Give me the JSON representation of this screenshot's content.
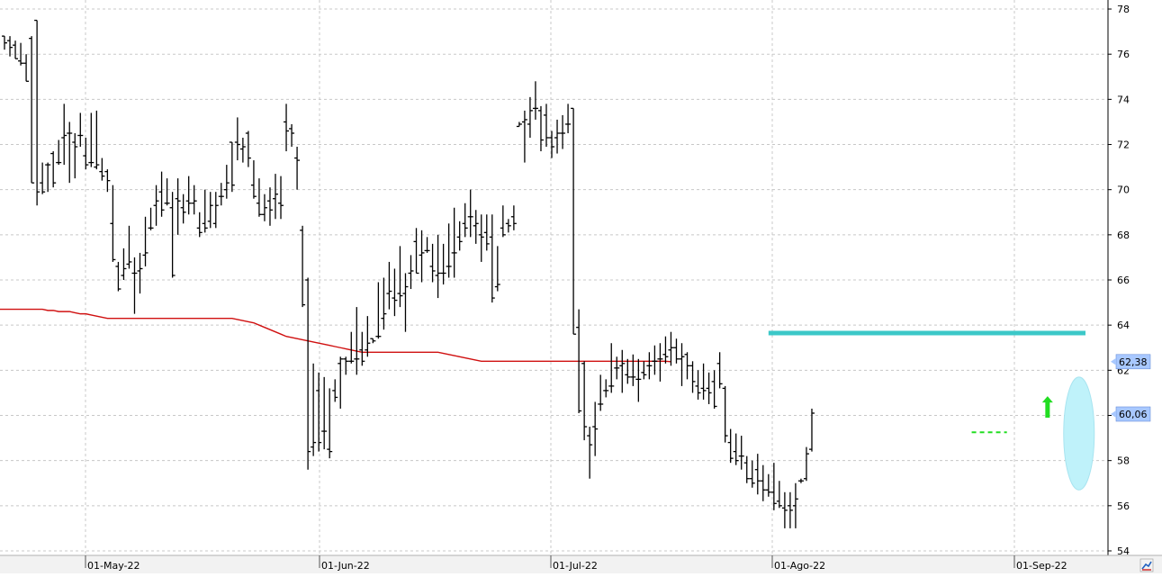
{
  "chart_data": {
    "type": "ohlc",
    "y_axis": {
      "position": "right",
      "min": 53.8,
      "max": 78.4,
      "ticks": [
        54,
        56,
        58,
        60,
        62,
        64,
        66,
        68,
        70,
        72,
        74,
        76,
        78
      ]
    },
    "x_axis": {
      "labels": [
        "01-May-22",
        "01-Jun-22",
        "01-Jul-22",
        "01-Ago-22",
        "01-Sep-22"
      ]
    },
    "grid": true,
    "price_tags": [
      {
        "label": "62,38",
        "value": 62.38,
        "color": "#a8c8ff"
      },
      {
        "label": "60,06",
        "value": 60.06,
        "color": "#a8c8ff"
      }
    ],
    "moving_average": {
      "color": "#d01010",
      "values": [
        64.7,
        64.7,
        64.7,
        64.7,
        64.7,
        64.7,
        64.7,
        64.7,
        64.65,
        64.65,
        64.6,
        64.6,
        64.6,
        64.55,
        64.5,
        64.5,
        64.45,
        64.4,
        64.35,
        64.3,
        64.3,
        64.3,
        64.3,
        64.3,
        64.3,
        64.3,
        64.3,
        64.3,
        64.3,
        64.3,
        64.3,
        64.3,
        64.3,
        64.3,
        64.3,
        64.3,
        64.3,
        64.3,
        64.3,
        64.3,
        64.3,
        64.3,
        64.3,
        64.25,
        64.2,
        64.15,
        64.1,
        64.0,
        63.9,
        63.8,
        63.7,
        63.6,
        63.5,
        63.45,
        63.4,
        63.35,
        63.3,
        63.25,
        63.2,
        63.15,
        63.1,
        63.05,
        63.0,
        62.95,
        62.9,
        62.85,
        62.8,
        62.8,
        62.8,
        62.8,
        62.8,
        62.8,
        62.8,
        62.8,
        62.8,
        62.8,
        62.8,
        62.8,
        62.8,
        62.8,
        62.8,
        62.75,
        62.7,
        62.65,
        62.6,
        62.55,
        62.5,
        62.45,
        62.4,
        62.4,
        62.4,
        62.4,
        62.4,
        62.4,
        62.4,
        62.4,
        62.4,
        62.4,
        62.4,
        62.4,
        62.4,
        62.4,
        62.4,
        62.4,
        62.4,
        62.4,
        62.4,
        62.4,
        62.4,
        62.4,
        62.4,
        62.4,
        62.4,
        62.4,
        62.4,
        62.4,
        62.4,
        62.4,
        62.4,
        62.4,
        62.4,
        62.4,
        62.4,
        62.38
      ]
    },
    "bars": [
      [
        76.8,
        76.8,
        76.2,
        76.5
      ],
      [
        76.6,
        76.8,
        75.9,
        76.3
      ],
      [
        76.4,
        76.6,
        75.8,
        75.8
      ],
      [
        75.7,
        76.5,
        75.5,
        75.6
      ],
      [
        75.6,
        76.0,
        74.8,
        74.8
      ],
      [
        76.7,
        76.8,
        70.3,
        70.3
      ],
      [
        77.5,
        77.5,
        69.3,
        69.9
      ],
      [
        70.3,
        71.2,
        69.8,
        69.9
      ],
      [
        71.1,
        71.2,
        69.9,
        71.1
      ],
      [
        71.6,
        71.7,
        70.1,
        70.3
      ],
      [
        71.2,
        72.2,
        71.1,
        71.2
      ],
      [
        72.3,
        73.8,
        71.1,
        72.4
      ],
      [
        72.5,
        73.0,
        70.3,
        72.5
      ],
      [
        72.1,
        72.5,
        70.5,
        71.9
      ],
      [
        72.4,
        73.4,
        71.9,
        72.4
      ],
      [
        71.5,
        72.3,
        70.9,
        71.1
      ],
      [
        71.2,
        73.4,
        71.0,
        71.2
      ],
      [
        71.0,
        73.5,
        70.9,
        71.1
      ],
      [
        70.8,
        71.4,
        70.4,
        70.6
      ],
      [
        70.8,
        70.9,
        69.9,
        70.4
      ],
      [
        68.5,
        70.2,
        66.8,
        66.9
      ],
      [
        66.6,
        66.8,
        65.5,
        65.6
      ],
      [
        66.2,
        67.4,
        66.0,
        66.5
      ],
      [
        66.7,
        68.4,
        66.5,
        66.8
      ],
      [
        66.3,
        67.0,
        64.5,
        66.3
      ],
      [
        66.4,
        67.2,
        65.4,
        66.5
      ],
      [
        67.1,
        68.8,
        66.6,
        67.2
      ],
      [
        68.3,
        69.2,
        68.2,
        68.3
      ],
      [
        69.3,
        70.2,
        68.4,
        69.5
      ],
      [
        69.9,
        70.8,
        68.8,
        69.1
      ],
      [
        69.4,
        70.5,
        69.3,
        69.4
      ],
      [
        69.2,
        69.9,
        66.1,
        66.2
      ],
      [
        69.6,
        70.5,
        68.0,
        69.5
      ],
      [
        69.2,
        69.8,
        68.5,
        69.0
      ],
      [
        69.5,
        70.6,
        68.9,
        69.4
      ],
      [
        69.4,
        70.2,
        68.9,
        69.5
      ],
      [
        68.3,
        69.0,
        67.9,
        68.1
      ],
      [
        68.5,
        70.0,
        68.1,
        68.3
      ],
      [
        68.6,
        69.9,
        68.3,
        69.3
      ],
      [
        68.5,
        69.9,
        68.3,
        69.3
      ],
      [
        69.7,
        70.3,
        69.3,
        69.7
      ],
      [
        70.0,
        71.1,
        69.6,
        70.3
      ],
      [
        72.1,
        72.1,
        69.9,
        70.2
      ],
      [
        72.1,
        73.2,
        71.3,
        72.0
      ],
      [
        71.8,
        72.3,
        71.2,
        71.9
      ],
      [
        72.5,
        72.6,
        71.0,
        71.4
      ],
      [
        70.2,
        71.3,
        69.6,
        69.7
      ],
      [
        69.4,
        70.5,
        68.8,
        68.9
      ],
      [
        68.9,
        69.8,
        68.6,
        69.2
      ],
      [
        69.5,
        70.1,
        68.4,
        69.1
      ],
      [
        69.6,
        70.7,
        68.7,
        69.8
      ],
      [
        69.4,
        70.6,
        68.7,
        69.3
      ],
      [
        73.0,
        73.8,
        71.7,
        72.6
      ],
      [
        72.7,
        72.9,
        71.9,
        72.5
      ],
      [
        71.4,
        71.9,
        70.0,
        71.3
      ],
      [
        68.2,
        68.4,
        64.8,
        64.9
      ],
      [
        66.0,
        66.1,
        57.6,
        58.4
      ],
      [
        58.6,
        62.3,
        58.2,
        58.8
      ],
      [
        61.1,
        61.9,
        58.4,
        58.8
      ],
      [
        59.3,
        61.7,
        58.5,
        59.3
      ],
      [
        58.5,
        61.2,
        58.1,
        58.4
      ],
      [
        61.1,
        61.6,
        60.6,
        60.8
      ],
      [
        62.3,
        62.6,
        60.3,
        62.5
      ],
      [
        62.5,
        62.6,
        61.8,
        62.4
      ],
      [
        62.4,
        63.7,
        62.3,
        62.4
      ],
      [
        62.5,
        64.8,
        61.8,
        62.5
      ],
      [
        62.9,
        63.7,
        62.2,
        62.4
      ],
      [
        62.9,
        64.4,
        62.6,
        63.2
      ],
      [
        63.4,
        63.4,
        63.2,
        63.3
      ],
      [
        63.5,
        65.9,
        63.4,
        63.5
      ],
      [
        64.3,
        66.1,
        63.8,
        64.5
      ],
      [
        65.4,
        66.8,
        64.7,
        65.5
      ],
      [
        65.2,
        66.5,
        64.4,
        65.1
      ],
      [
        65.4,
        67.5,
        64.8,
        65.3
      ],
      [
        65.4,
        66.3,
        63.7,
        65.7
      ],
      [
        66.3,
        67.1,
        65.6,
        66.4
      ],
      [
        67.7,
        68.3,
        66.3,
        66.3
      ],
      [
        67.1,
        68.2,
        65.9,
        67.2
      ],
      [
        67.3,
        67.9,
        67.2,
        67.3
      ],
      [
        66.6,
        67.6,
        65.9,
        66.4
      ],
      [
        66.2,
        68.0,
        65.2,
        66.3
      ],
      [
        66.3,
        67.6,
        65.8,
        66.3
      ],
      [
        66.6,
        68.5,
        66.1,
        66.6
      ],
      [
        67.2,
        69.2,
        66.1,
        67.2
      ],
      [
        67.9,
        68.6,
        67.3,
        67.7
      ],
      [
        68.5,
        69.4,
        67.9,
        68.3
      ],
      [
        68.8,
        70.0,
        67.9,
        68.8
      ],
      [
        68.4,
        69.1,
        67.6,
        68.5
      ],
      [
        68.0,
        68.9,
        66.8,
        67.9
      ],
      [
        68.1,
        68.9,
        67.3,
        67.6
      ],
      [
        67.9,
        68.9,
        65.0,
        65.2
      ],
      [
        65.7,
        67.5,
        65.5,
        65.8
      ],
      [
        68.3,
        69.3,
        67.9,
        68.0
      ],
      [
        68.5,
        68.7,
        68.1,
        68.4
      ],
      [
        68.8,
        69.3,
        68.2,
        68.5
      ],
      [
        72.8,
        73.0,
        72.8,
        72.9
      ],
      [
        73.0,
        73.5,
        71.2,
        73.1
      ],
      [
        72.9,
        74.1,
        72.3,
        73.5
      ],
      [
        73.6,
        74.8,
        73.1,
        73.6
      ],
      [
        73.5,
        73.7,
        71.7,
        72.2
      ],
      [
        73.3,
        73.8,
        71.9,
        72.3
      ],
      [
        72.3,
        72.6,
        71.4,
        71.9
      ],
      [
        72.3,
        73.1,
        71.6,
        72.5
      ],
      [
        72.5,
        73.3,
        71.8,
        72.5
      ],
      [
        72.9,
        73.8,
        72.5,
        72.9
      ],
      [
        73.6,
        73.6,
        63.6,
        63.6
      ],
      [
        63.9,
        64.7,
        60.1,
        60.2
      ],
      [
        62.3,
        62.4,
        58.9,
        59.5
      ],
      [
        59.1,
        59.5,
        57.2,
        58.7
      ],
      [
        59.5,
        60.6,
        58.2,
        59.4
      ],
      [
        60.5,
        61.8,
        60.2,
        60.5
      ],
      [
        61.1,
        61.6,
        60.8,
        61.1
      ],
      [
        61.3,
        63.2,
        61.0,
        61.3
      ],
      [
        62.1,
        62.6,
        61.6,
        62.1
      ],
      [
        62.2,
        62.9,
        61.0,
        62.3
      ],
      [
        61.8,
        62.5,
        61.4,
        61.7
      ],
      [
        61.7,
        62.7,
        61.3,
        61.7
      ],
      [
        61.6,
        62.5,
        60.6,
        61.6
      ],
      [
        61.9,
        62.4,
        61.6,
        61.8
      ],
      [
        62.2,
        62.8,
        61.6,
        62.2
      ],
      [
        62.4,
        63.1,
        61.8,
        62.4
      ],
      [
        62.5,
        63.2,
        61.5,
        62.5
      ],
      [
        62.7,
        63.5,
        62.3,
        62.6
      ],
      [
        62.9,
        63.7,
        62.2,
        63.0
      ],
      [
        63.0,
        63.4,
        62.3,
        62.5
      ],
      [
        62.5,
        63.2,
        61.3,
        62.6
      ],
      [
        62.7,
        62.8,
        61.6,
        62.2
      ],
      [
        62.2,
        62.4,
        61.0,
        61.5
      ],
      [
        61.3,
        62.0,
        60.7,
        61.0
      ],
      [
        61.2,
        62.3,
        60.7,
        61.1
      ],
      [
        61.2,
        61.9,
        60.5,
        61.0
      ],
      [
        61.5,
        62.0,
        60.3,
        60.4
      ],
      [
        62.3,
        62.8,
        61.2,
        61.4
      ],
      [
        61.2,
        61.3,
        58.8,
        59.1
      ],
      [
        58.8,
        59.4,
        57.9,
        58.1
      ],
      [
        58.4,
        59.2,
        57.8,
        58.0
      ],
      [
        58.2,
        59.1,
        57.6,
        58.2
      ],
      [
        57.9,
        58.2,
        57.0,
        57.2
      ],
      [
        57.2,
        58.0,
        56.8,
        57.0
      ],
      [
        57.6,
        58.3,
        56.5,
        57.1
      ],
      [
        57.1,
        57.8,
        56.2,
        56.7
      ],
      [
        56.7,
        57.4,
        56.4,
        56.6
      ],
      [
        56.6,
        57.9,
        55.8,
        56.1
      ],
      [
        56.2,
        57.1,
        55.9,
        56.0
      ],
      [
        55.9,
        56.6,
        55.0,
        55.8
      ],
      [
        56.0,
        56.6,
        55.0,
        55.8
      ],
      [
        56.0,
        57.0,
        55.0,
        56.3
      ],
      [
        57.1,
        57.2,
        57.0,
        57.1
      ],
      [
        57.2,
        58.6,
        57.1,
        58.3
      ],
      [
        58.5,
        60.3,
        58.4,
        60.1
      ]
    ],
    "annotations": [
      {
        "type": "resistance_line",
        "value": 63.65,
        "color": "#3cc8c8"
      },
      {
        "type": "dashed_line",
        "value": 59.25,
        "color": "#22dd22"
      },
      {
        "type": "up_arrow",
        "value": 60.3,
        "color": "#22dd22"
      },
      {
        "type": "ellipse",
        "value": 59.2,
        "color": "#bff2fa"
      }
    ]
  }
}
